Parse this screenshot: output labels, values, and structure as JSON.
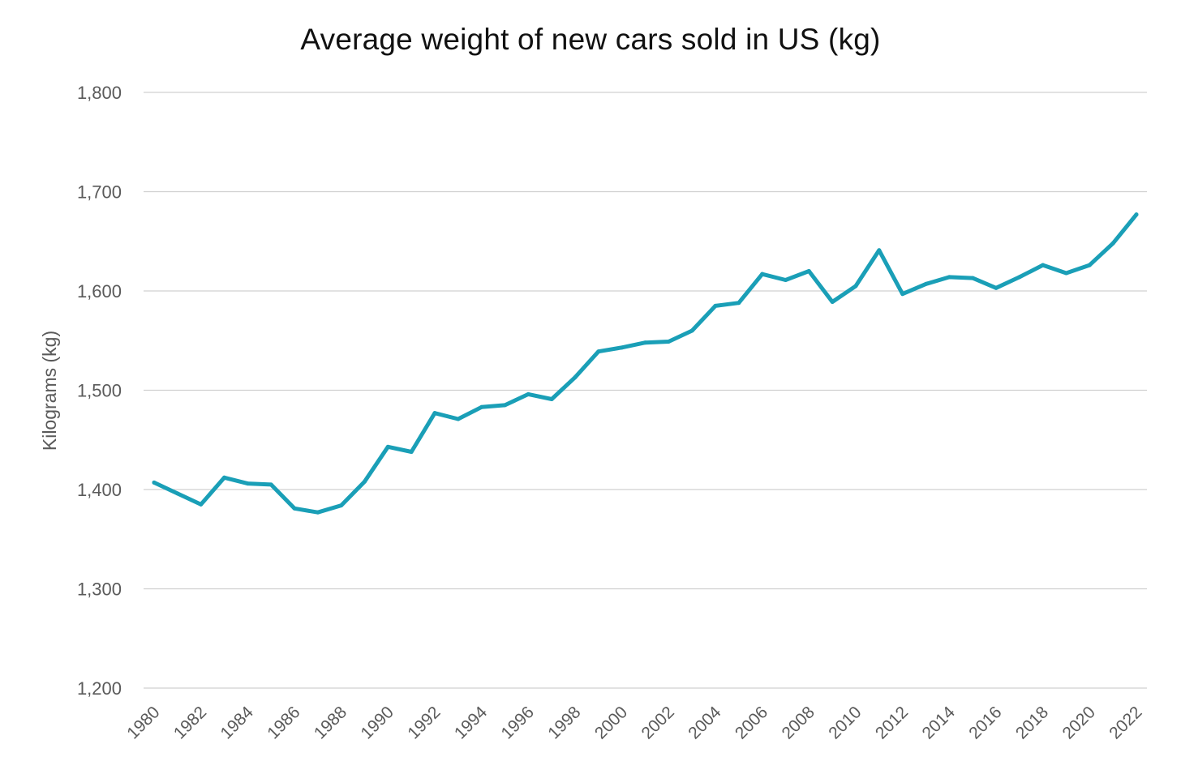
{
  "chart_data": {
    "type": "line",
    "title": "Average weight of new cars sold in US (kg)",
    "xlabel": "",
    "ylabel": "Kilograms (kg)",
    "ylim": [
      1200,
      1800
    ],
    "yticks": [
      1200,
      1300,
      1400,
      1500,
      1600,
      1700,
      1800
    ],
    "ytick_labels": [
      "1,200",
      "1,300",
      "1,400",
      "1,500",
      "1,600",
      "1,700",
      "1,800"
    ],
    "xlim": [
      1980,
      2022
    ],
    "xtick_labels": [
      "1980",
      "1982",
      "1984",
      "1986",
      "1988",
      "1990",
      "1992",
      "1994",
      "1996",
      "1998",
      "2000",
      "2002",
      "2004",
      "2006",
      "2008",
      "2010",
      "2012",
      "2014",
      "2016",
      "2018",
      "2020",
      "2022"
    ],
    "grid": true,
    "legend": "none",
    "color": "#1a9fb7",
    "x": [
      1980,
      1981,
      1982,
      1983,
      1984,
      1985,
      1986,
      1987,
      1988,
      1989,
      1990,
      1991,
      1992,
      1993,
      1994,
      1995,
      1996,
      1997,
      1998,
      1999,
      2000,
      2001,
      2002,
      2003,
      2004,
      2005,
      2006,
      2007,
      2008,
      2009,
      2010,
      2011,
      2012,
      2013,
      2014,
      2015,
      2016,
      2017,
      2018,
      2019,
      2020,
      2021,
      2022
    ],
    "values": [
      1407,
      1396,
      1385,
      1412,
      1406,
      1405,
      1381,
      1377,
      1384,
      1408,
      1443,
      1438,
      1477,
      1471,
      1483,
      1485,
      1496,
      1491,
      1513,
      1539,
      1543,
      1548,
      1549,
      1560,
      1585,
      1588,
      1617,
      1611,
      1620,
      1589,
      1605,
      1641,
      1597,
      1607,
      1614,
      1613,
      1603,
      1614,
      1626,
      1618,
      1626,
      1648,
      1677
    ]
  }
}
